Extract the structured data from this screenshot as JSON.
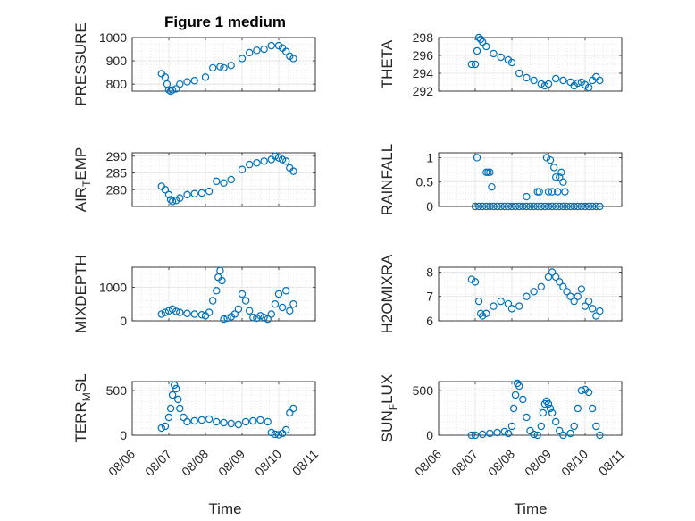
{
  "figure": {
    "title": "Figure 1 medium",
    "xlabel": "Time"
  },
  "chart_data": [
    {
      "type": "scatter",
      "ylabel": "PRESSURE",
      "xlim": [
        "08/06",
        "08/11"
      ],
      "ylim": [
        770,
        1000
      ],
      "yticks": [
        "800",
        "900",
        "1000"
      ],
      "xticks": [
        "08/06",
        "08/07",
        "08/08",
        "08/09",
        "08/10",
        "08/11"
      ],
      "grid": true,
      "marker": "open-circle",
      "color": "#0072bd",
      "x": [
        0.8,
        0.9,
        0.95,
        1.0,
        1.05,
        1.1,
        1.2,
        1.3,
        1.5,
        1.7,
        2.0,
        2.2,
        2.4,
        2.5,
        2.7,
        3.0,
        3.2,
        3.4,
        3.6,
        3.8,
        4.0,
        4.1,
        4.2,
        4.3,
        4.4
      ],
      "y": [
        845,
        830,
        800,
        775,
        770,
        775,
        780,
        800,
        810,
        815,
        830,
        870,
        875,
        870,
        880,
        910,
        935,
        945,
        950,
        965,
        965,
        955,
        940,
        920,
        910
      ]
    },
    {
      "type": "scatter",
      "ylabel": "THETA",
      "xlim": [
        "08/06",
        "08/11"
      ],
      "ylim": [
        292,
        298
      ],
      "yticks": [
        "292",
        "294",
        "296",
        "298"
      ],
      "xticks": [
        "08/06",
        "08/07",
        "08/08",
        "08/09",
        "08/10",
        "08/11"
      ],
      "grid": true,
      "marker": "open-circle",
      "color": "#0072bd",
      "x": [
        0.9,
        1.0,
        1.05,
        1.1,
        1.15,
        1.2,
        1.3,
        1.5,
        1.7,
        1.9,
        2.0,
        2.2,
        2.4,
        2.6,
        2.8,
        2.9,
        3.0,
        3.2,
        3.4,
        3.6,
        3.7,
        3.8,
        3.9,
        4.0,
        4.1,
        4.2,
        4.3,
        4.4
      ],
      "y": [
        295,
        295,
        296.5,
        298,
        297.8,
        297.5,
        297,
        296.2,
        295.8,
        295.5,
        295.2,
        294,
        293.5,
        293.2,
        292.8,
        292.6,
        292.8,
        293.4,
        293.2,
        293,
        292.6,
        292.9,
        293,
        292.7,
        292.4,
        293.2,
        293.6,
        293.2
      ]
    },
    {
      "type": "scatter",
      "ylabel": "AIR_TEMP",
      "xlim": [
        "08/06",
        "08/11"
      ],
      "ylim": [
        275,
        291
      ],
      "yticks": [
        "280",
        "285",
        "290"
      ],
      "xticks": [
        "08/06",
        "08/07",
        "08/08",
        "08/09",
        "08/10",
        "08/11"
      ],
      "grid": true,
      "marker": "open-circle",
      "color": "#0072bd",
      "x": [
        0.8,
        0.9,
        1.0,
        1.05,
        1.1,
        1.2,
        1.3,
        1.5,
        1.7,
        1.9,
        2.1,
        2.3,
        2.5,
        2.7,
        3.0,
        3.2,
        3.4,
        3.6,
        3.8,
        3.9,
        4.0,
        4.1,
        4.2,
        4.3,
        4.4
      ],
      "y": [
        281,
        280,
        278.5,
        277,
        276.5,
        276.8,
        277.5,
        278.5,
        278.8,
        279,
        279.5,
        282.5,
        282,
        283,
        286,
        287.5,
        288,
        288.5,
        289,
        290,
        289.5,
        289,
        288.5,
        286.5,
        285.5
      ]
    },
    {
      "type": "scatter",
      "ylabel": "RAINFALL",
      "xlim": [
        "08/06",
        "08/11"
      ],
      "ylim": [
        0,
        1.1
      ],
      "yticks": [
        "0",
        "0.5",
        "1"
      ],
      "xticks": [
        "08/06",
        "08/07",
        "08/08",
        "08/09",
        "08/10",
        "08/11"
      ],
      "grid": true,
      "marker": "open-circle",
      "color": "#0072bd",
      "x": [
        1.0,
        1.1,
        1.2,
        1.3,
        1.4,
        1.5,
        1.6,
        1.7,
        1.8,
        1.9,
        2.0,
        2.1,
        2.2,
        2.3,
        2.4,
        2.5,
        2.6,
        2.7,
        2.8,
        2.9,
        3.0,
        3.1,
        3.2,
        3.3,
        3.4,
        3.5,
        3.6,
        3.7,
        3.8,
        3.9,
        4.0,
        4.1,
        4.2,
        4.3,
        4.4,
        1.05,
        1.3,
        1.35,
        1.4,
        1.45,
        2.4,
        2.7,
        2.75,
        2.95,
        3.0,
        3.05,
        3.1,
        3.15,
        3.2,
        3.25,
        3.3,
        3.35,
        3.4,
        3.45
      ],
      "y": [
        0,
        0,
        0,
        0,
        0,
        0,
        0,
        0,
        0,
        0,
        0,
        0,
        0,
        0,
        0,
        0,
        0,
        0,
        0,
        0,
        0,
        0,
        0,
        0,
        0,
        0,
        0,
        0,
        0,
        0,
        0,
        0,
        0,
        0,
        0,
        1,
        0.7,
        0.7,
        0.7,
        0.4,
        0.2,
        0.3,
        0.3,
        1,
        0.3,
        0.95,
        0.3,
        0.8,
        0.6,
        0.3,
        0.6,
        0.7,
        0.5,
        0.3
      ]
    },
    {
      "type": "scatter",
      "ylabel": "MIXDEPTH",
      "xlim": [
        "08/06",
        "08/11"
      ],
      "ylim": [
        0,
        1600
      ],
      "yticks": [
        "0",
        "1000"
      ],
      "xticks": [
        "08/06",
        "08/07",
        "08/08",
        "08/09",
        "08/10",
        "08/11"
      ],
      "grid": true,
      "marker": "open-circle",
      "color": "#0072bd",
      "x": [
        0.8,
        0.9,
        1.0,
        1.1,
        1.2,
        1.3,
        1.5,
        1.7,
        1.9,
        2.0,
        2.1,
        2.2,
        2.3,
        2.35,
        2.4,
        2.45,
        2.5,
        2.6,
        2.7,
        2.8,
        2.9,
        3.0,
        3.1,
        3.2,
        3.3,
        3.4,
        3.5,
        3.6,
        3.7,
        3.8,
        3.9,
        4.0,
        4.1,
        4.2,
        4.3,
        4.4
      ],
      "y": [
        200,
        250,
        300,
        350,
        280,
        250,
        220,
        200,
        180,
        150,
        250,
        600,
        900,
        1300,
        1500,
        1200,
        50,
        80,
        120,
        200,
        350,
        800,
        600,
        300,
        100,
        80,
        150,
        100,
        50,
        200,
        500,
        800,
        400,
        900,
        300,
        500
      ]
    },
    {
      "type": "scatter",
      "ylabel": "H2OMIXRA",
      "xlim": [
        "08/06",
        "08/11"
      ],
      "ylim": [
        6,
        8.2
      ],
      "yticks": [
        "6",
        "7",
        "8"
      ],
      "xticks": [
        "08/06",
        "08/07",
        "08/08",
        "08/09",
        "08/10",
        "08/11"
      ],
      "grid": true,
      "marker": "open-circle",
      "color": "#0072bd",
      "x": [
        0.9,
        1.0,
        1.1,
        1.15,
        1.2,
        1.3,
        1.5,
        1.7,
        1.9,
        2.0,
        2.2,
        2.4,
        2.6,
        2.8,
        3.0,
        3.1,
        3.2,
        3.3,
        3.4,
        3.5,
        3.6,
        3.7,
        3.8,
        3.9,
        4.0,
        4.1,
        4.2,
        4.3,
        4.4
      ],
      "y": [
        7.7,
        7.6,
        6.8,
        6.3,
        6.2,
        6.3,
        6.6,
        6.8,
        6.7,
        6.5,
        6.6,
        7.0,
        7.2,
        7.4,
        7.8,
        8.0,
        7.8,
        7.6,
        7.4,
        7.2,
        7.0,
        6.8,
        7.0,
        7.3,
        6.6,
        6.8,
        6.5,
        6.2,
        6.4
      ]
    },
    {
      "type": "scatter",
      "ylabel": "TERR_MSL",
      "xlim": [
        "08/06",
        "08/11"
      ],
      "ylim": [
        0,
        600
      ],
      "yticks": [
        "0",
        "500"
      ],
      "xticks": [
        "08/06",
        "08/07",
        "08/08",
        "08/09",
        "08/10",
        "08/11"
      ],
      "grid": true,
      "marker": "open-circle",
      "color": "#0072bd",
      "x": [
        0.8,
        0.9,
        1.0,
        1.05,
        1.1,
        1.15,
        1.2,
        1.25,
        1.3,
        1.4,
        1.5,
        1.7,
        1.9,
        2.1,
        2.3,
        2.5,
        2.7,
        2.9,
        3.1,
        3.3,
        3.5,
        3.7,
        3.8,
        3.9,
        4.0,
        4.1,
        4.2,
        4.3,
        4.4
      ],
      "y": [
        80,
        100,
        200,
        300,
        450,
        560,
        520,
        400,
        300,
        200,
        150,
        160,
        170,
        180,
        150,
        140,
        130,
        120,
        150,
        160,
        170,
        150,
        30,
        10,
        5,
        20,
        60,
        250,
        300
      ]
    },
    {
      "type": "scatter",
      "ylabel": "SUN_FLUX",
      "xlim": [
        "08/06",
        "08/11"
      ],
      "ylim": [
        0,
        600
      ],
      "yticks": [
        "0",
        "500"
      ],
      "xticks": [
        "08/06",
        "08/07",
        "08/08",
        "08/09",
        "08/10",
        "08/11"
      ],
      "grid": true,
      "marker": "open-circle",
      "color": "#0072bd",
      "x": [
        0.9,
        1.0,
        1.2,
        1.4,
        1.6,
        1.8,
        1.9,
        2.0,
        2.05,
        2.1,
        2.15,
        2.2,
        2.3,
        2.4,
        2.5,
        2.6,
        2.7,
        2.8,
        2.85,
        2.9,
        2.95,
        3.0,
        3.05,
        3.1,
        3.2,
        3.3,
        3.4,
        3.6,
        3.7,
        3.8,
        3.9,
        4.0,
        4.1,
        4.2,
        4.3,
        4.4
      ],
      "y": [
        0,
        0,
        10,
        20,
        30,
        40,
        20,
        100,
        300,
        450,
        580,
        550,
        400,
        200,
        50,
        10,
        0,
        100,
        250,
        350,
        380,
        350,
        300,
        250,
        150,
        50,
        0,
        20,
        100,
        300,
        500,
        510,
        480,
        300,
        100,
        0
      ]
    }
  ]
}
